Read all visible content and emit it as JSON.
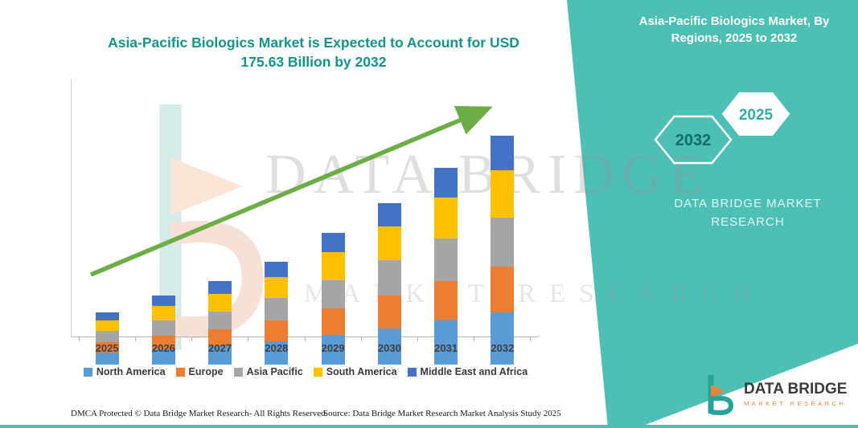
{
  "colors": {
    "teal_panel": "#4DBFB5",
    "title_teal": "#12958B",
    "arrow_green": "#6CAE45"
  },
  "title": {
    "line1": "Asia-Pacific Biologics Market is Expected to Account for USD",
    "line2": "175.63 Billion by 2032"
  },
  "side_panel": {
    "heading": "Asia-Pacific Biologics Market, By Regions, 2025 to 2032",
    "hexagon_back": "2032",
    "hexagon_front": "2025",
    "brand_line1": "DATA BRIDGE MARKET",
    "brand_line2": "RESEARCH"
  },
  "watermark": {
    "line1": "DATA BRIDGE",
    "line2": "MARKET RESEARCH"
  },
  "chart_data": {
    "type": "bar",
    "stacked": true,
    "title": "Asia-Pacific Biologics Market is Expected to Account for USD 175.63 Billion by 2032",
    "unit": "USD Billion",
    "categories": [
      "2025",
      "2026",
      "2027",
      "2028",
      "2029",
      "2030",
      "2031",
      "2032"
    ],
    "series": [
      {
        "name": "North America",
        "color": "#5B9BD5",
        "values": [
          9,
          12,
          14,
          18,
          23,
          28,
          34,
          40
        ]
      },
      {
        "name": "Europe",
        "color": "#ED7D31",
        "values": [
          8,
          10,
          13,
          16,
          20,
          25,
          30,
          35
        ]
      },
      {
        "name": "Asia Pacific",
        "color": "#A5A5A5",
        "values": [
          9,
          12,
          14,
          17,
          22,
          27,
          33,
          38
        ]
      },
      {
        "name": "South America",
        "color": "#FFC000",
        "values": [
          8,
          11,
          13,
          16,
          21,
          26,
          31,
          36
        ]
      },
      {
        "name": "Middle East and Africa",
        "color": "#4472C4",
        "values": [
          6,
          8,
          10,
          12,
          15,
          18,
          23,
          26.63
        ]
      }
    ],
    "totals": [
      40,
      53,
      64,
      79,
      101,
      124,
      151,
      175.63
    ],
    "ylim": [
      0,
      190
    ],
    "grid": false,
    "legend_position": "bottom",
    "annotations": [
      "Green upward trend arrow from 2025 bar to 2032 bar"
    ]
  },
  "footer": {
    "dmca": "DMCA Protected © Data Bridge Market Research-  All Rights Reserved.",
    "source": "Source: Data Bridge Market Research  Market Analysis Study 2025"
  },
  "logo": {
    "name": "DATA BRIDGE",
    "sub": "MARKET RESEARCH"
  }
}
